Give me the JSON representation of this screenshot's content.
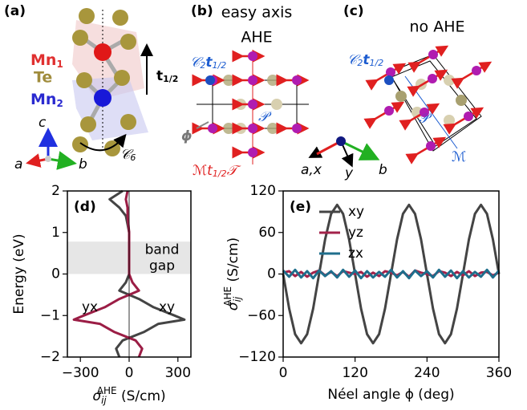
{
  "diagram": {
    "structure": {
      "label": "(a)",
      "mn1": {
        "text": "Mn",
        "sub": "1"
      },
      "te": "Te",
      "mn2": {
        "text": "Mn",
        "sub": "2"
      },
      "translation": {
        "text": "t",
        "sub": "1/2"
      },
      "rotation": {
        "text": "𝒞",
        "sub": "6"
      },
      "axes": [
        "c",
        "a",
        "b"
      ]
    },
    "easy_axis": {
      "label": "(b)",
      "title": [
        "easy axis",
        "AHE"
      ],
      "screw": {
        "text": "𝒞",
        "sub": "2",
        "t": "t",
        "tsub": "1/2"
      },
      "inversion": "𝒫",
      "angle": "ϕ",
      "mirror": {
        "text": "ℳt",
        "sub": "1/2",
        "rest": "𝒯"
      }
    },
    "no_ahe": {
      "label": "(c)",
      "title": "no AHE",
      "screw": {
        "text": "𝒞",
        "sub": "2",
        "t": "t",
        "tsub": "1/2"
      },
      "inversion": "𝒫",
      "mirror": "ℳ"
    },
    "frame_axes": [
      "a,x",
      "y",
      "b"
    ]
  },
  "chart_data": [
    {
      "type": "line",
      "orientation": "horizontal",
      "panel_label": "(d)",
      "ylabel": "Energy (eV)",
      "xlabel": {
        "symbol": "σ",
        "sub": "ij",
        "sup": "AHE",
        "unit": " (S/cm)"
      },
      "y": [
        2,
        1.8,
        1.6,
        1.4,
        1.2,
        1.0,
        0.8,
        0.6,
        0.4,
        0.2,
        0,
        -0.2,
        -0.4,
        -0.6,
        -0.8,
        -1.0,
        -1.1,
        -1.2,
        -1.4,
        -1.6,
        -1.8,
        -2.0
      ],
      "series": [
        {
          "name": "xy",
          "color": "#444444",
          "values": [
            -40,
            -120,
            -60,
            -20,
            -10,
            0,
            0,
            0,
            0,
            0,
            0,
            -20,
            -60,
            60,
            150,
            280,
            340,
            180,
            90,
            -40,
            -80,
            -60
          ]
        },
        {
          "name": "yx",
          "color": "#9b1d45",
          "values": [
            -10,
            -20,
            -10,
            -10,
            -5,
            0,
            0,
            0,
            0,
            0,
            0,
            20,
            60,
            -60,
            -150,
            -280,
            -340,
            -180,
            -90,
            40,
            80,
            60
          ]
        }
      ],
      "band_gap": {
        "range": [
          0,
          0.78
        ],
        "label": [
          "band",
          "gap"
        ]
      },
      "xlim": [
        -380,
        380
      ],
      "xticks": [
        {
          "value": -300,
          "label": "−300"
        },
        0,
        300
      ],
      "ylim": [
        -2,
        2
      ],
      "yticks": [
        {
          "value": -2,
          "label": "−2"
        },
        {
          "value": -1,
          "label": "−1"
        },
        0,
        1,
        2
      ]
    },
    {
      "type": "line",
      "panel_label": "(e)",
      "xlabel": "Néel angle ϕ (deg)",
      "ylabel": {
        "symbol": "σ",
        "sub": "ij",
        "sup": "AHE",
        "unit": " (S/cm)"
      },
      "x": [
        0,
        10,
        20,
        30,
        40,
        50,
        60,
        70,
        80,
        90,
        100,
        110,
        120,
        130,
        140,
        150,
        160,
        170,
        180,
        190,
        200,
        210,
        220,
        230,
        240,
        250,
        260,
        270,
        280,
        290,
        300,
        310,
        320,
        330,
        340,
        350,
        360
      ],
      "series": [
        {
          "name": "xy",
          "color": "#444444",
          "values": [
            0,
            -50,
            -87,
            -100,
            -87,
            -50,
            0,
            50,
            87,
            100,
            87,
            50,
            0,
            -50,
            -87,
            -100,
            -87,
            -50,
            0,
            50,
            87,
            100,
            87,
            50,
            0,
            -50,
            -87,
            -100,
            -87,
            -50,
            0,
            50,
            87,
            100,
            87,
            50,
            0
          ]
        },
        {
          "name": "yz",
          "color": "#a3224a",
          "values": [
            2,
            4,
            -3,
            3,
            -4,
            2,
            5,
            -2,
            3,
            -3,
            4,
            2,
            0,
            3,
            -4,
            2,
            -3,
            4,
            2,
            -2,
            3,
            -4,
            5,
            2,
            0,
            -3,
            4,
            2,
            -3,
            3,
            -2,
            4,
            -3,
            2,
            3,
            -2,
            2
          ]
        },
        {
          "name": "zx",
          "color": "#1f6e8c",
          "values": [
            5,
            -4,
            6,
            -5,
            4,
            -6,
            5,
            -3,
            4,
            -5,
            6,
            -4,
            5,
            -6,
            4,
            -5,
            3,
            -4,
            6,
            -5,
            4,
            -6,
            5,
            -3,
            4,
            -5,
            6,
            -4,
            5,
            -6,
            4,
            -5,
            3,
            -4,
            6,
            -5,
            5
          ]
        }
      ],
      "legend": "upper center",
      "xlim": [
        0,
        360
      ],
      "xticks": [
        0,
        120,
        240,
        360
      ],
      "ylim": [
        -120,
        120
      ],
      "yticks": [
        {
          "value": -120,
          "label": "−120"
        },
        {
          "value": -60,
          "label": "−60"
        },
        0,
        60,
        120
      ]
    }
  ]
}
